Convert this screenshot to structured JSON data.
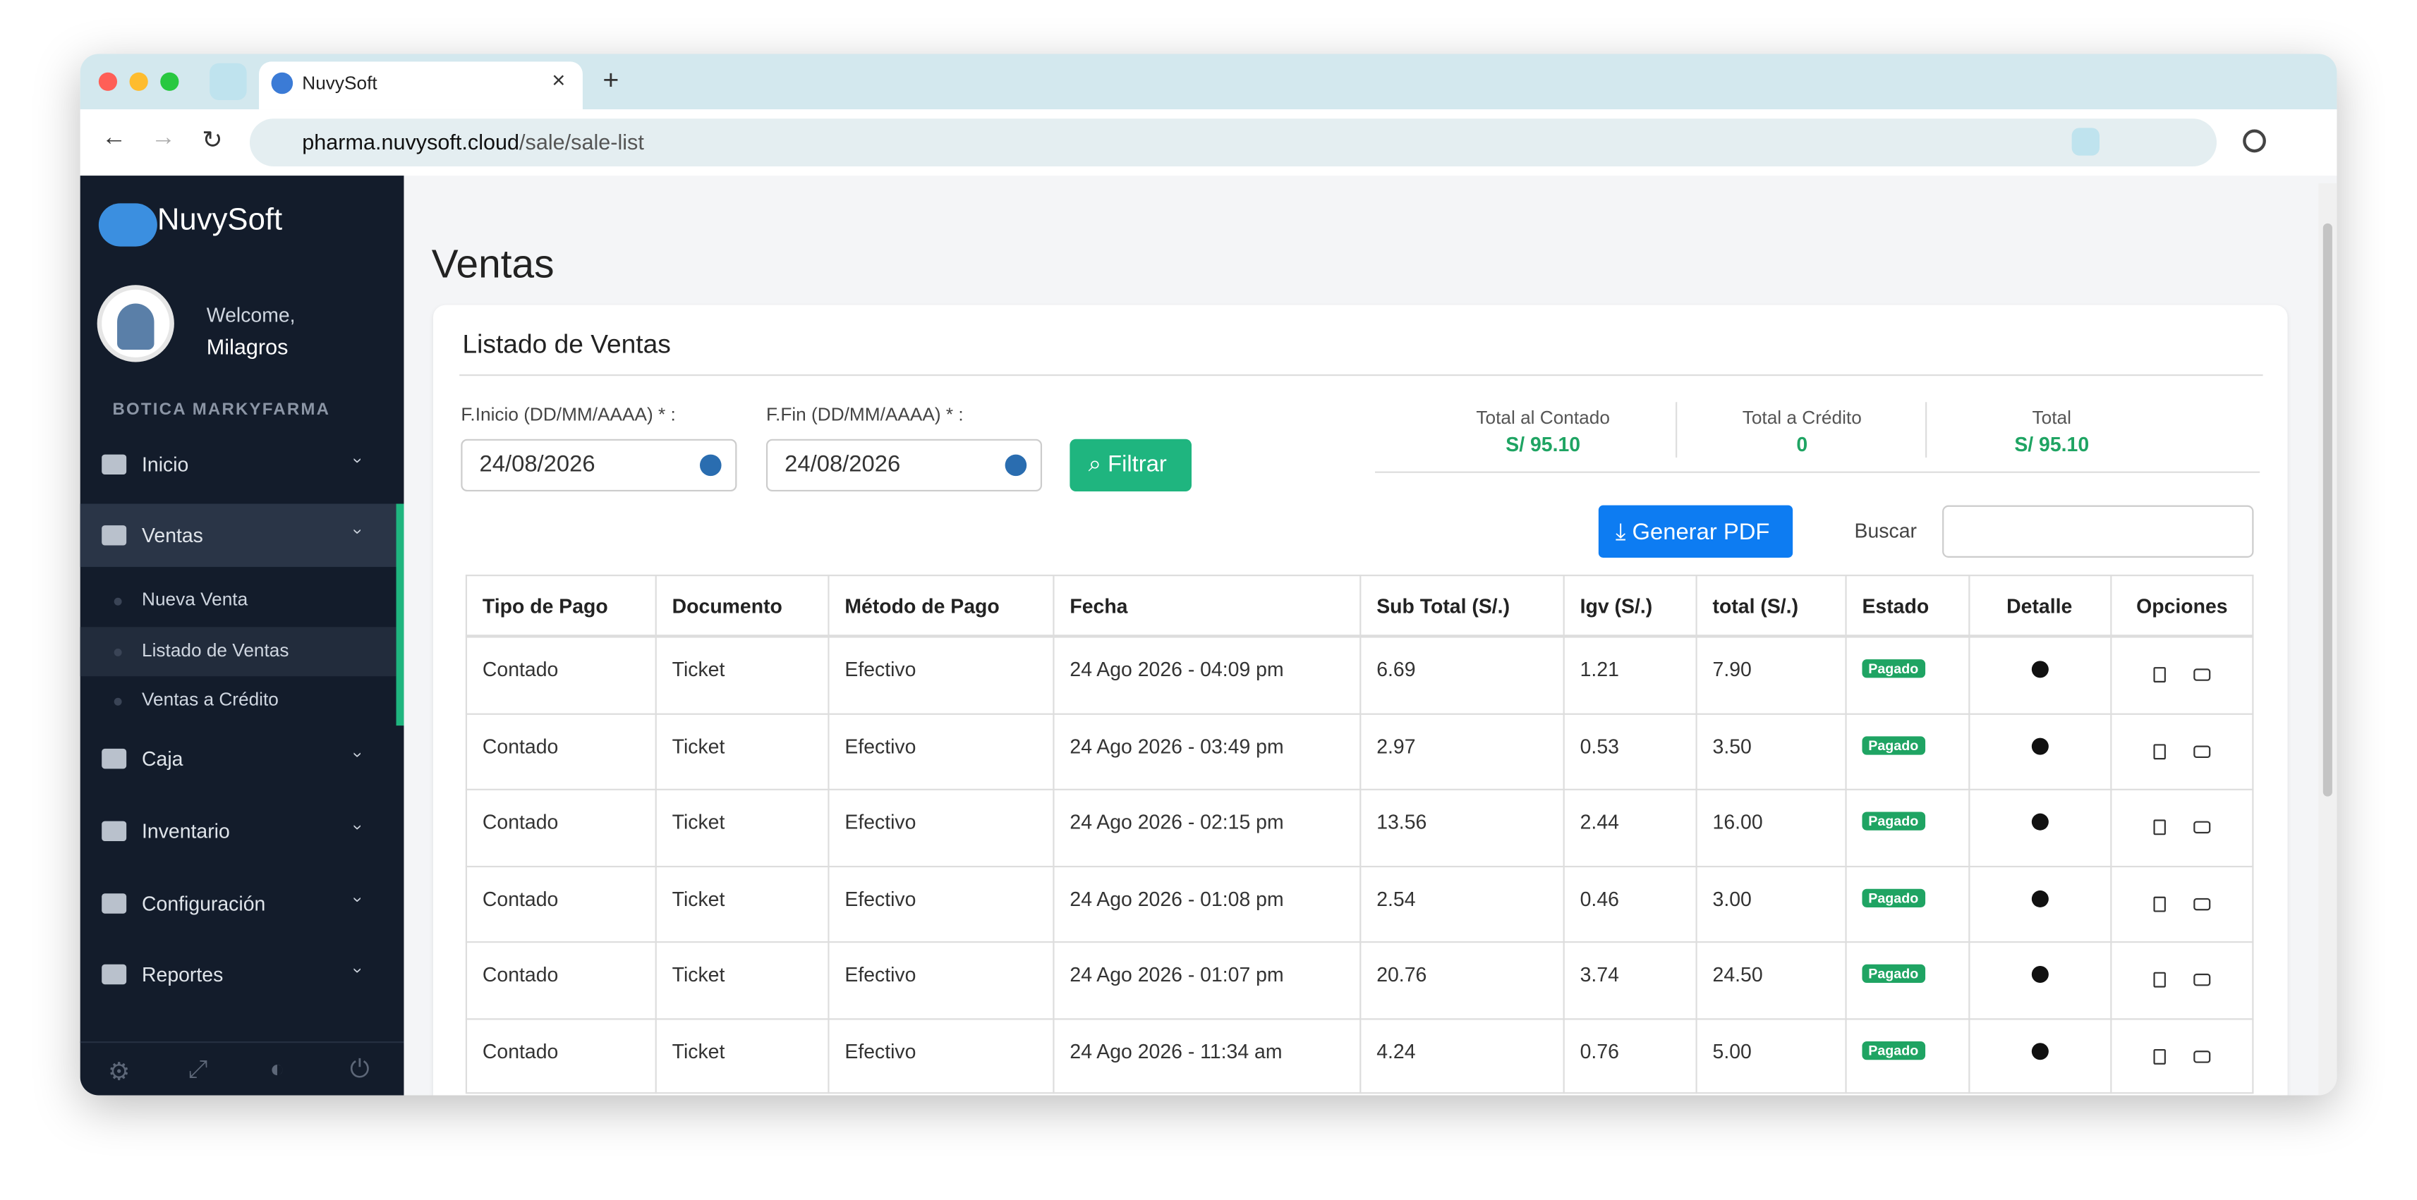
{
  "browser": {
    "tab_title": "NuvySoft",
    "url_host": "pharma.nuvysoft.cloud",
    "url_path": "/sale/sale-list"
  },
  "sidebar": {
    "brand": "NuvySoft",
    "welcome": "Welcome,",
    "user": "Milagros",
    "store": "BOTICA MARKYFARMA",
    "menu": [
      {
        "label": "Inicio"
      },
      {
        "label": "Ventas",
        "children": [
          "Nueva Venta",
          "Listado de Ventas",
          "Ventas a Crédito"
        ]
      },
      {
        "label": "Caja"
      },
      {
        "label": "Inventario"
      },
      {
        "label": "Configuración"
      },
      {
        "label": "Reportes"
      }
    ]
  },
  "page": {
    "title": "Ventas",
    "card_title": "Listado de Ventas",
    "filters": [
      {
        "label": "F.Inicio (DD/MM/AAAA) * :",
        "value": "24/08/2026"
      },
      {
        "label": "F.Fin (DD/MM/AAAA) * :",
        "value": "24/08/2026"
      }
    ],
    "filter_button": "Filtrar",
    "totals": [
      {
        "label": "Total al Contado",
        "value": "S/ 95.10"
      },
      {
        "label": "Total a Crédito",
        "value": "0"
      },
      {
        "label": "Total",
        "value": "S/ 95.10"
      }
    ],
    "pdf_button": "Generar PDF",
    "search_label": "Buscar"
  },
  "table": {
    "columns": [
      "Tipo de Pago",
      "Documento",
      "Método de Pago",
      "Fecha",
      "Sub Total (S/.)",
      "Igv (S/.)",
      "total (S/.)",
      "Estado",
      "Detalle",
      "Opciones"
    ],
    "rows": [
      [
        "Contado",
        "Ticket",
        "Efectivo",
        "24 Ago 2026 - 04:09 pm",
        "6.69",
        "1.21",
        "7.90",
        "Pagado"
      ],
      [
        "Contado",
        "Ticket",
        "Efectivo",
        "24 Ago 2026 - 03:49 pm",
        "2.97",
        "0.53",
        "3.50",
        "Pagado"
      ],
      [
        "Contado",
        "Ticket",
        "Efectivo",
        "24 Ago 2026 - 02:15 pm",
        "13.56",
        "2.44",
        "16.00",
        "Pagado"
      ],
      [
        "Contado",
        "Ticket",
        "Efectivo",
        "24 Ago 2026 - 01:08 pm",
        "2.54",
        "0.46",
        "3.00",
        "Pagado"
      ],
      [
        "Contado",
        "Ticket",
        "Efectivo",
        "24 Ago 2026 - 01:07 pm",
        "20.76",
        "3.74",
        "24.50",
        "Pagado"
      ],
      [
        "Contado",
        "Ticket",
        "Efectivo",
        "24 Ago 2026 - 11:34 am",
        "4.24",
        "0.76",
        "5.00",
        "Pagado"
      ]
    ]
  }
}
